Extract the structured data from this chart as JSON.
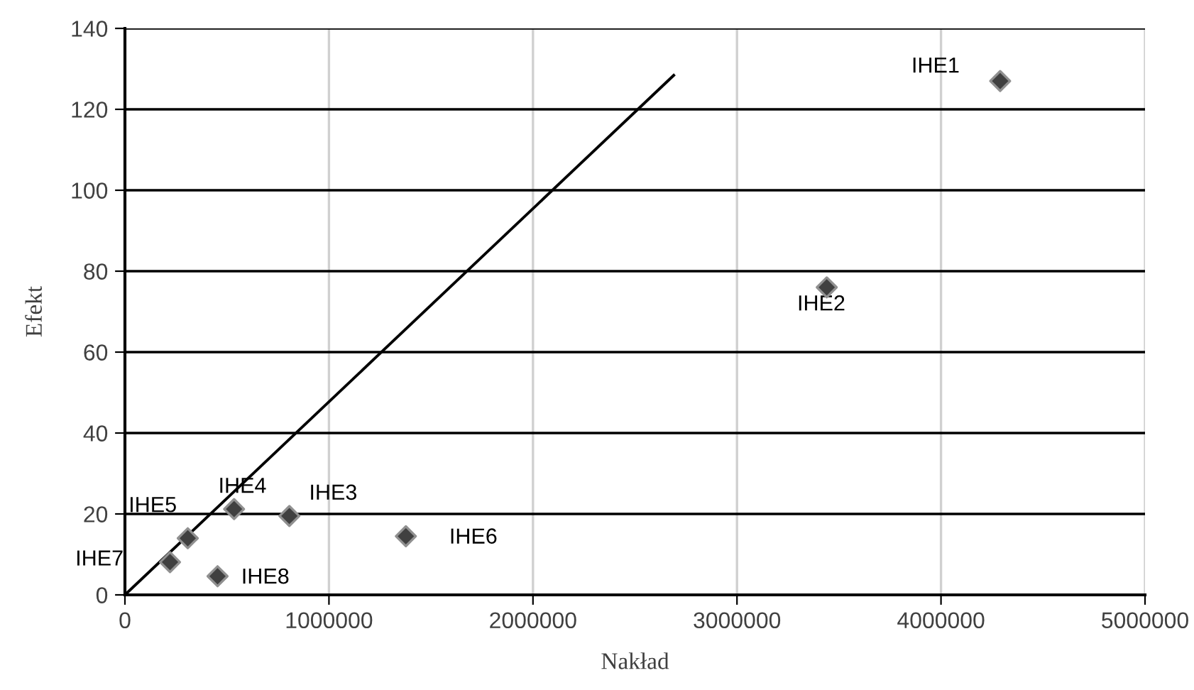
{
  "chart_data": {
    "type": "scatter",
    "xlabel": "Nakład",
    "ylabel": "Efekt",
    "xlim": [
      0,
      5000000
    ],
    "ylim": [
      0,
      140
    ],
    "xticks": [
      0,
      1000000,
      2000000,
      3000000,
      4000000,
      5000000
    ],
    "yticks": [
      0,
      20,
      40,
      60,
      80,
      100,
      120,
      140
    ],
    "grid": true,
    "marker": "diamond",
    "series": [
      {
        "color": "#404040",
        "x": [
          4290000,
          3440000,
          806000,
          535000,
          308000,
          1377000,
          221000,
          454000
        ],
        "values": [
          127,
          76,
          19.5,
          21.2,
          14,
          14.5,
          8.1,
          4.6
        ]
      },
      {
        "type": "line",
        "color": "#000000",
        "marker": "none",
        "x": [
          0,
          2690000
        ],
        "values": [
          0,
          128.4
        ]
      }
    ],
    "annotations": [
      {
        "text": "IHE1",
        "x": 4290000,
        "y": 127
      },
      {
        "text": "IHE2",
        "x": 3440000,
        "y": 76
      },
      {
        "text": "IHE3",
        "x": 806000,
        "y": 19.5
      },
      {
        "text": "IHE4",
        "x": 535000,
        "y": 21.2
      },
      {
        "text": "IHE5",
        "x": 308000,
        "y": 14
      },
      {
        "text": "IHE6",
        "x": 1377000,
        "y": 14.5
      },
      {
        "text": "IHE7",
        "x": 221000,
        "y": 8.1
      },
      {
        "text": "IHE8",
        "x": 454000,
        "y": 4.6
      }
    ]
  }
}
